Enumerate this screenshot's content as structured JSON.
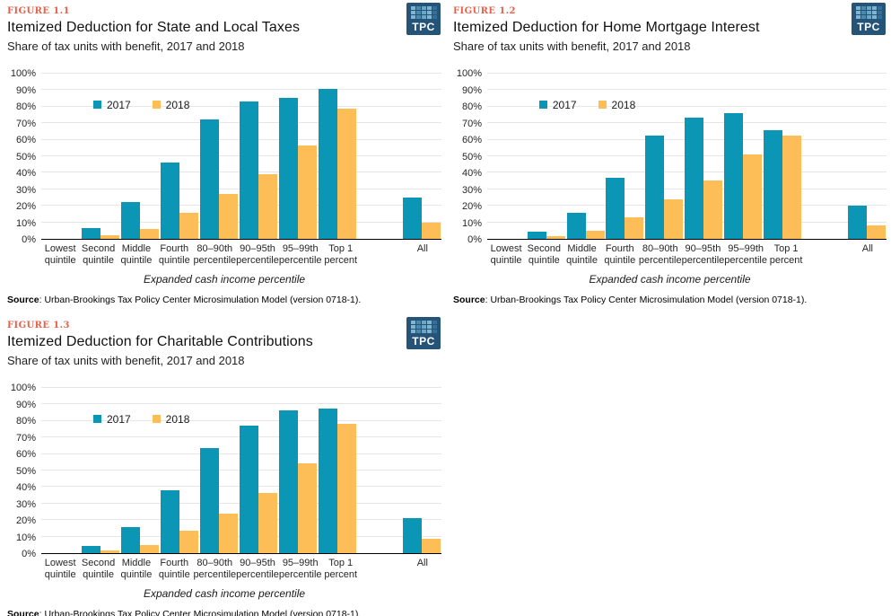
{
  "logo": {
    "text": "TPC"
  },
  "source": {
    "prefix": "Source",
    "text": ": Urban-Brookings Tax Policy Center Microsimulation Model (version 0718-1)."
  },
  "colors": {
    "series_2017": "#0a96b4",
    "series_2018": "#fdbd57",
    "figure_label": "#e9604a",
    "gridline": "#e6e6e6",
    "axis_line": "#000000",
    "logo_background": "#265478"
  },
  "chart_data": [
    {
      "type": "bar",
      "figure_label": "FIGURE 1.1",
      "title": "Itemized Deduction for State and Local Taxes",
      "subtitle": "Share of tax units with benefit, 2017 and 2018",
      "xlabel": "Expanded cash income percentile",
      "ylabel": "",
      "ylim": [
        0,
        100
      ],
      "ytick_step": 10,
      "ytick_suffix": "%",
      "grid": true,
      "legend_position": "inside-upper-left",
      "categories": [
        "Lowest quintile",
        "Second quintile",
        "Middle quintile",
        "Fourth quintile",
        "80–90th percentile",
        "90–95th percentile",
        "95–99th percentile",
        "Top 1 percent",
        "All"
      ],
      "category_lines": [
        [
          "Lowest",
          "quintile"
        ],
        [
          "Second",
          "quintile"
        ],
        [
          "Middle",
          "quintile"
        ],
        [
          "Fourth",
          "quintile"
        ],
        [
          "80–90th",
          "percentile"
        ],
        [
          "90–95th",
          "percentile"
        ],
        [
          "95–99th",
          "percentile"
        ],
        [
          "Top 1",
          "percent"
        ],
        [
          "All"
        ]
      ],
      "series": [
        {
          "name": "2017",
          "values": [
            0,
            6.5,
            22.5,
            46,
            72.5,
            83,
            85.5,
            90.5,
            25
          ]
        },
        {
          "name": "2018",
          "values": [
            0,
            2,
            6,
            15.5,
            27,
            39,
            56.5,
            79,
            10
          ]
        }
      ]
    },
    {
      "type": "bar",
      "figure_label": "FIGURE 1.2",
      "title": "Itemized Deduction for Home Mortgage Interest",
      "subtitle": "Share of tax units with benefit, 2017 and 2018",
      "xlabel": "Expanded cash income percentile",
      "ylabel": "",
      "ylim": [
        0,
        100
      ],
      "ytick_step": 10,
      "ytick_suffix": "%",
      "grid": true,
      "legend_position": "inside-upper-left",
      "categories": [
        "Lowest quintile",
        "Second quintile",
        "Middle quintile",
        "Fourth quintile",
        "80–90th percentile",
        "90–95th percentile",
        "95–99th percentile",
        "Top 1 percent",
        "All"
      ],
      "category_lines": [
        [
          "Lowest",
          "quintile"
        ],
        [
          "Second",
          "quintile"
        ],
        [
          "Middle",
          "quintile"
        ],
        [
          "Fourth",
          "quintile"
        ],
        [
          "80–90th",
          "percentile"
        ],
        [
          "90–95th",
          "percentile"
        ],
        [
          "95–99th",
          "percentile"
        ],
        [
          "Top 1",
          "percent"
        ],
        [
          "All"
        ]
      ],
      "series": [
        {
          "name": "2017",
          "values": [
            0,
            4.5,
            16,
            37,
            62.5,
            73.5,
            76,
            66,
            20
          ]
        },
        {
          "name": "2018",
          "values": [
            0,
            1.5,
            5,
            13,
            24,
            35.5,
            51,
            62.5,
            8
          ]
        }
      ]
    },
    {
      "type": "bar",
      "figure_label": "FIGURE 1.3",
      "title": "Itemized Deduction for Charitable Contributions",
      "subtitle": "Share of tax units with benefit, 2017 and 2018",
      "xlabel": "Expanded cash income percentile",
      "ylabel": "",
      "ylim": [
        0,
        100
      ],
      "ytick_step": 10,
      "ytick_suffix": "%",
      "grid": true,
      "legend_position": "inside-upper-left",
      "categories": [
        "Lowest quintile",
        "Second quintile",
        "Middle quintile",
        "Fourth quintile",
        "80–90th percentile",
        "90–95th percentile",
        "95–99th percentile",
        "Top 1 percent",
        "All"
      ],
      "category_lines": [
        [
          "Lowest",
          "quintile"
        ],
        [
          "Second",
          "quintile"
        ],
        [
          "Middle",
          "quintile"
        ],
        [
          "Fourth",
          "quintile"
        ],
        [
          "80–90th",
          "percentile"
        ],
        [
          "90–95th",
          "percentile"
        ],
        [
          "95–99th",
          "percentile"
        ],
        [
          "Top 1",
          "percent"
        ],
        [
          "All"
        ]
      ],
      "series": [
        {
          "name": "2017",
          "values": [
            0,
            4.5,
            16,
            38,
            63.5,
            77,
            86.5,
            87.5,
            21
          ]
        },
        {
          "name": "2018",
          "values": [
            0,
            1.5,
            5,
            13.5,
            24,
            36.5,
            54.5,
            78,
            8.5
          ]
        }
      ]
    }
  ]
}
